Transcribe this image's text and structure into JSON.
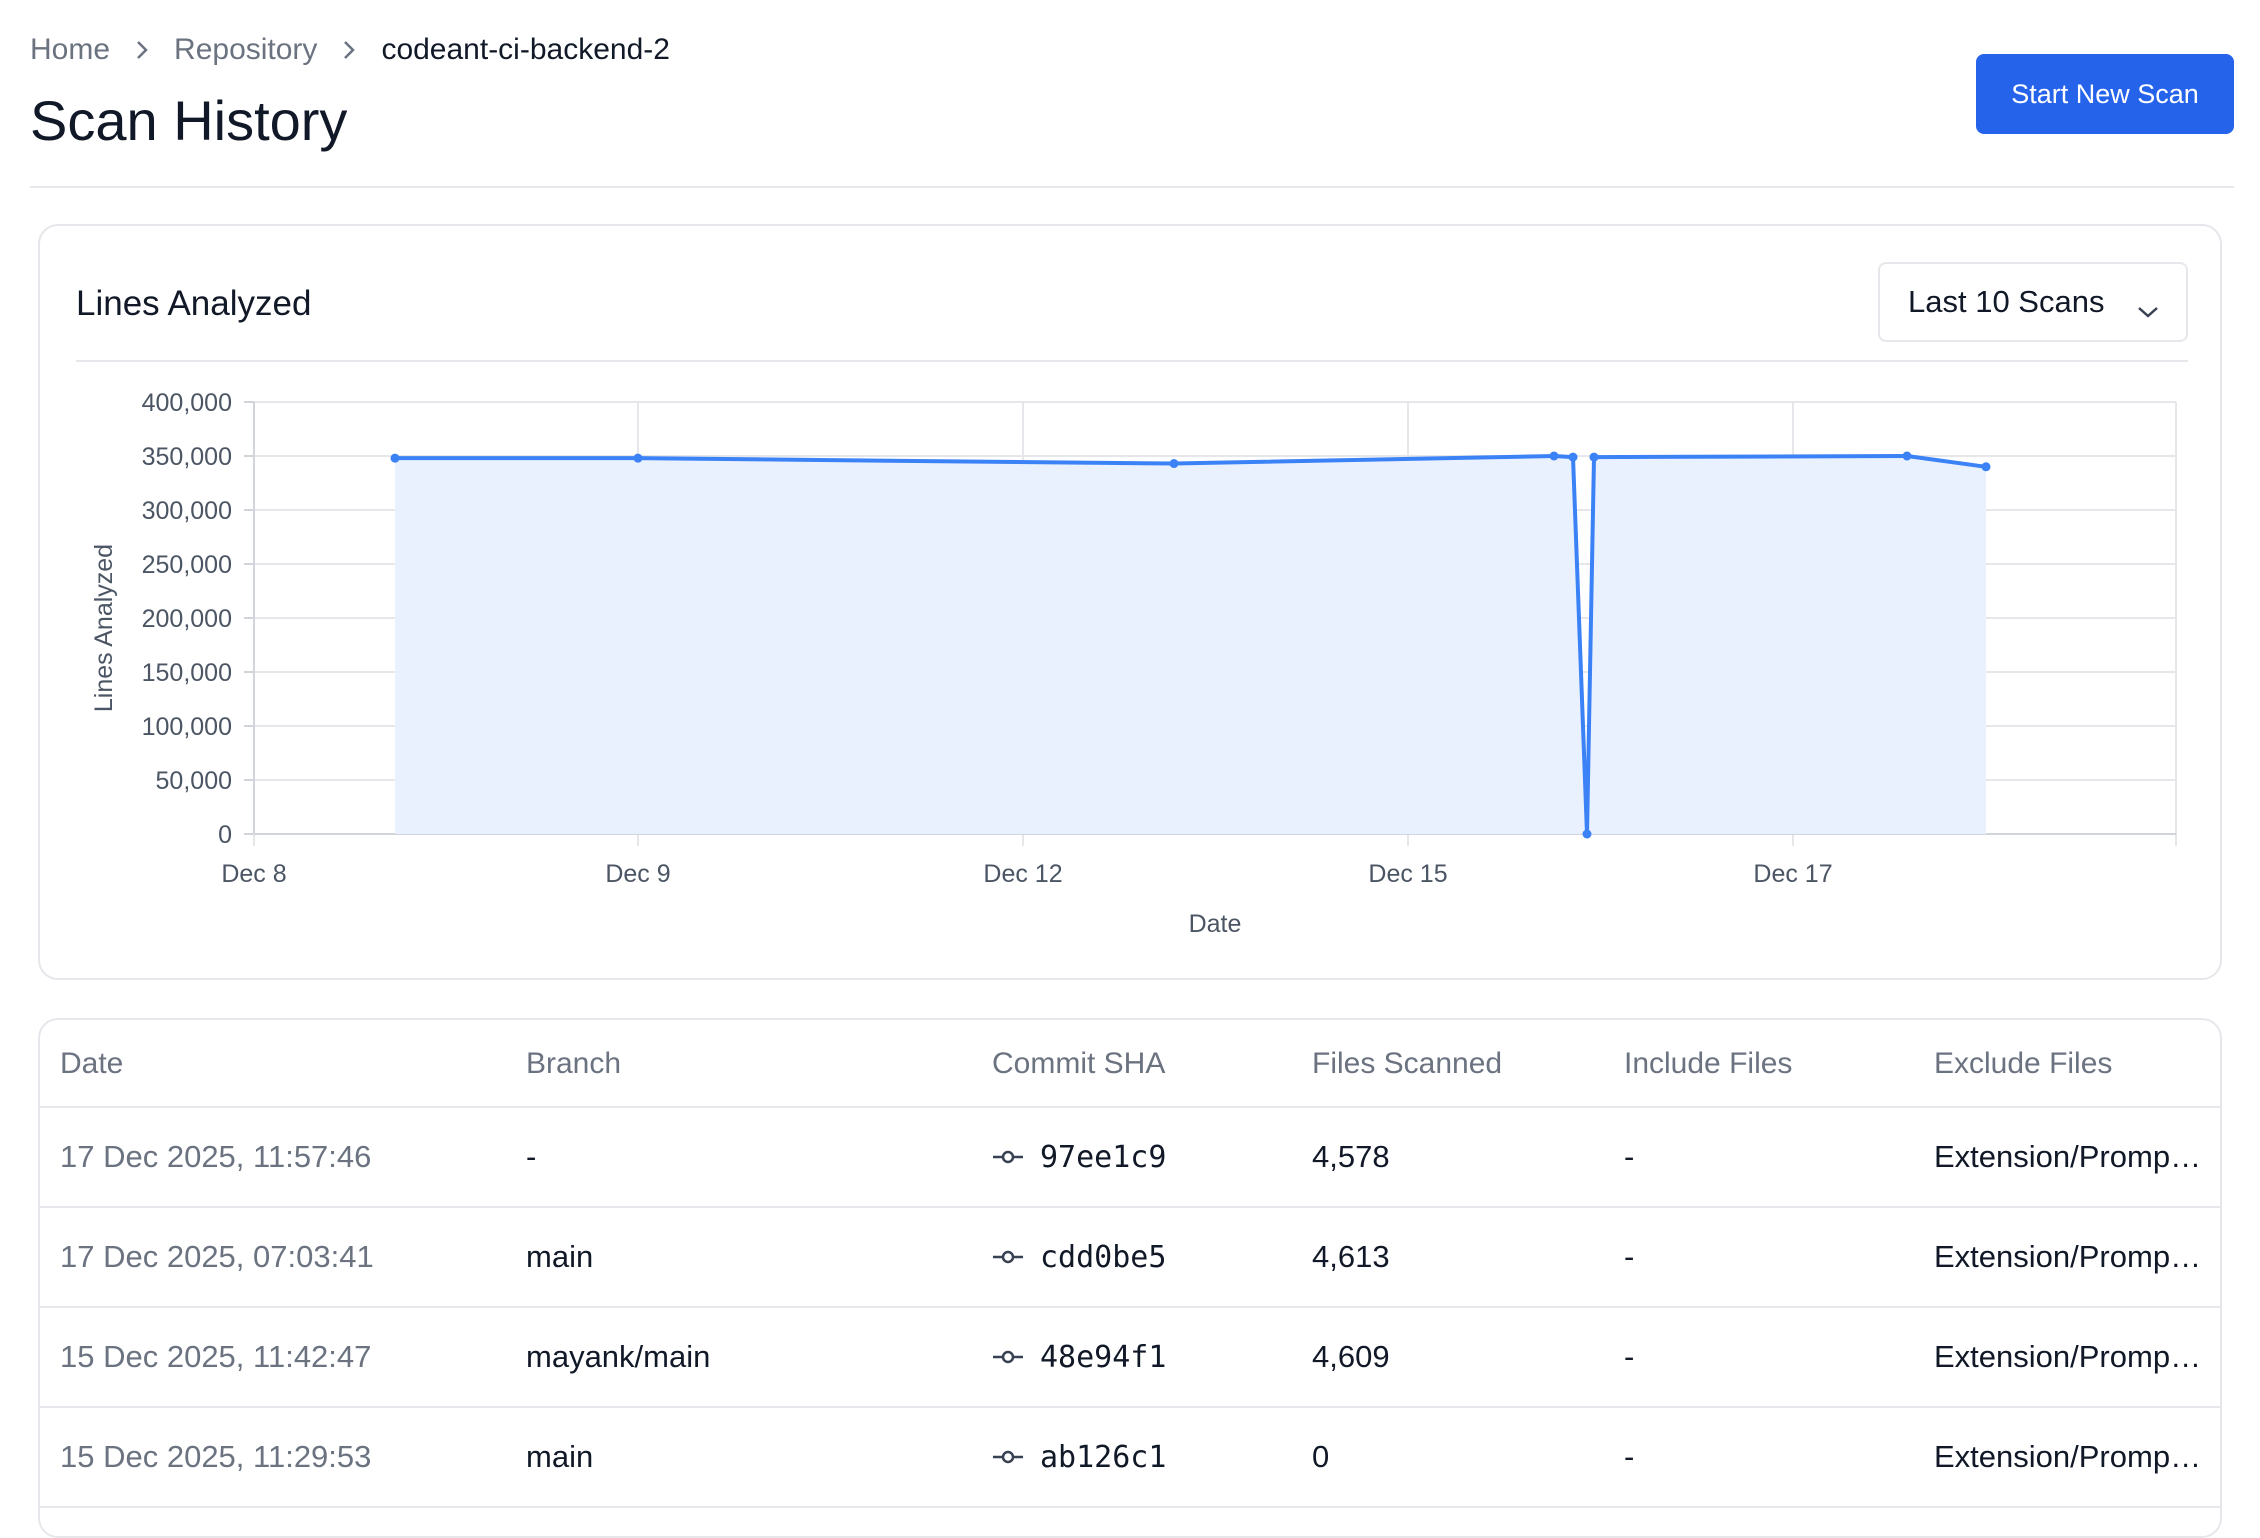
{
  "breadcrumb": {
    "items": [
      "Home",
      "Repository",
      "codeant-ci-backend-2"
    ]
  },
  "page": {
    "title": "Scan History"
  },
  "actions": {
    "start_scan_label": "Start New Scan"
  },
  "colors": {
    "primary": "#2563eb",
    "line": "#3b82f6",
    "area_fill": "#eaf1fe",
    "border": "#e5e7eb",
    "muted_text": "#6b7280"
  },
  "chart_card": {
    "title": "Lines Analyzed",
    "range_selector": {
      "value": "Last 10 Scans",
      "icon": "chevron-down-icon"
    }
  },
  "chart_data": {
    "type": "area",
    "xlabel": "Date",
    "ylabel": "Lines Analyzed",
    "ylim": [
      0,
      400000
    ],
    "yticks": [
      0,
      50000,
      100000,
      150000,
      200000,
      250000,
      300000,
      350000,
      400000
    ],
    "ytick_labels": [
      "0",
      "50,000",
      "100,000",
      "150,000",
      "200,000",
      "250,000",
      "300,000",
      "350,000",
      "400,000"
    ],
    "x_ticks": [
      "Dec 8",
      "Dec 9",
      "Dec 12",
      "Dec 15",
      "Dec 17"
    ],
    "grid": true,
    "points": [
      {
        "x": "Dec 8",
        "y": 348000
      },
      {
        "x": "Dec 9",
        "y": 348000
      },
      {
        "x": "Dec 12",
        "y": 343000
      },
      {
        "x": "Dec 15",
        "y": 350000
      },
      {
        "x": "Dec 15",
        "y": 349000
      },
      {
        "x": "Dec 15",
        "y": 0
      },
      {
        "x": "Dec 15",
        "y": 349000
      },
      {
        "x": "Dec 17",
        "y": 350000
      },
      {
        "x": "Dec 17",
        "y": 340000
      }
    ]
  },
  "table": {
    "columns": [
      "Date",
      "Branch",
      "Commit SHA",
      "Files Scanned",
      "Include Files",
      "Exclude Files"
    ],
    "rows": [
      {
        "date": "17 Dec 2025, 11:57:46",
        "branch": "-",
        "sha": "97ee1c9",
        "files": "4,578",
        "include": "-",
        "exclude": "Extension/Prompt..."
      },
      {
        "date": "17 Dec 2025, 07:03:41",
        "branch": "main",
        "sha": "cdd0be5",
        "files": "4,613",
        "include": "-",
        "exclude": "Extension/Prompt..."
      },
      {
        "date": "15 Dec 2025, 11:42:47",
        "branch": "mayank/main",
        "sha": "48e94f1",
        "files": "4,609",
        "include": "-",
        "exclude": "Extension/Prompt..."
      },
      {
        "date": "15 Dec 2025, 11:29:53",
        "branch": "main",
        "sha": "ab126c1",
        "files": "0",
        "include": "-",
        "exclude": "Extension/Prompt..."
      }
    ]
  }
}
